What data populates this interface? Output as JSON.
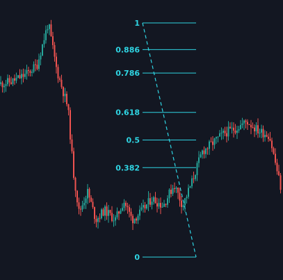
{
  "colors": {
    "background": "#131722",
    "up": "#26a69a",
    "down": "#ef5350",
    "fib": "#2fd5e3"
  },
  "chart_data": {
    "type": "candlestick",
    "title": "",
    "xlabel": "",
    "ylabel": "",
    "ylim": [
      0,
      1
    ],
    "grid": false,
    "legend": "none",
    "fib_levels": [
      "1",
      "0.886",
      "0.786",
      "0.618",
      "0.5",
      "0.382",
      "0"
    ],
    "fib_values": [
      1,
      0.886,
      0.786,
      0.618,
      0.5,
      0.382,
      0
    ],
    "fib_trend": {
      "from": 1,
      "to": 0
    },
    "price_path": [
      [
        0,
        0.74
      ],
      [
        0.04,
        0.75
      ],
      [
        0.09,
        0.78
      ],
      [
        0.13,
        0.82
      ],
      [
        0.17,
        1.0
      ],
      [
        0.2,
        0.8
      ],
      [
        0.24,
        0.64
      ],
      [
        0.26,
        0.36
      ],
      [
        0.28,
        0.19
      ],
      [
        0.31,
        0.28
      ],
      [
        0.34,
        0.16
      ],
      [
        0.37,
        0.2
      ],
      [
        0.41,
        0.16
      ],
      [
        0.44,
        0.24
      ],
      [
        0.47,
        0.16
      ],
      [
        0.5,
        0.19
      ],
      [
        0.54,
        0.25
      ],
      [
        0.58,
        0.22
      ],
      [
        0.62,
        0.31
      ],
      [
        0.65,
        0.22
      ],
      [
        0.68,
        0.31
      ],
      [
        0.72,
        0.45
      ],
      [
        0.76,
        0.49
      ],
      [
        0.8,
        0.53
      ],
      [
        0.84,
        0.55
      ],
      [
        0.88,
        0.58
      ],
      [
        0.92,
        0.54
      ],
      [
        0.96,
        0.52
      ],
      [
        1.0,
        0.3
      ]
    ]
  }
}
